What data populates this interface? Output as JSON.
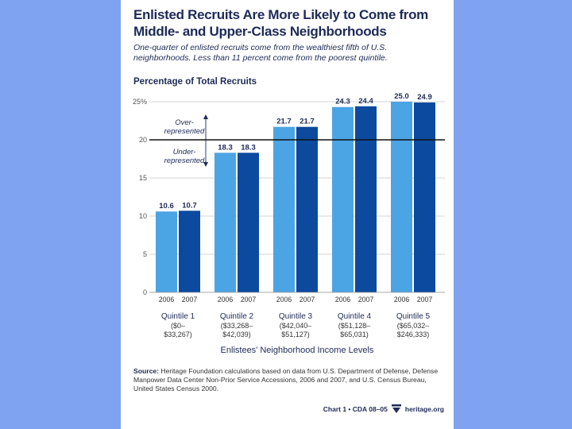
{
  "title_line1": "Enlisted Recruits Are More Likely to Come from",
  "title_line2": "Middle- and Upper-Class Neighborhoods",
  "subtitle_line1": "One-quarter of enlisted recruits come from the wealthiest fifth of U.S.",
  "subtitle_line2": "neighborhoods. Less than 11 percent come from the poorest quintile.",
  "annotations": {
    "over_line1": "Over-",
    "over_line2": "represented",
    "under_line1": "Under-",
    "under_line2": "represented"
  },
  "source_label": "Source:",
  "source_text": "Heritage Foundation calculations based on data from U.S. Department of Defense, Defense Manpower Data Center Non-Prior Service Accessions, 2006 and 2007, and U.S. Census Bureau, United States Census 2000.",
  "footer_chart": "Chart 1 • CDA 08–05",
  "footer_site": "heritage.org",
  "colors": {
    "background": "#7fa3f0",
    "bar_2006": "#4ba4e4",
    "bar_2007": "#0b4a9e",
    "text": "#1e2a57"
  },
  "chart_data": {
    "type": "bar",
    "title": "Enlisted Recruits Are More Likely to Come from Middle- and Upper-Class Neighborhoods",
    "ylabel": "Percentage of Total Recruits",
    "xlabel": "Enlistees' Neighborhood Income Levels",
    "ylim": [
      0,
      25
    ],
    "yticks": [
      "0",
      "5",
      "10",
      "15",
      "20",
      "25%"
    ],
    "reference_line": 20,
    "grid": true,
    "categories": [
      {
        "name": "Quintile 1",
        "range1": "($0–",
        "range2": "$33,267)"
      },
      {
        "name": "Quintile 2",
        "range1": "($33,268–",
        "range2": "$42,039)"
      },
      {
        "name": "Quintile 3",
        "range1": "($42,040–",
        "range2": "$51,127)"
      },
      {
        "name": "Quintile 4",
        "range1": "($51,128–",
        "range2": "$65,031)"
      },
      {
        "name": "Quintile 5",
        "range1": "($65,032–",
        "range2": "$246,333)"
      }
    ],
    "series": [
      {
        "name": "2006",
        "values": [
          10.6,
          18.3,
          21.7,
          24.3,
          25.0
        ]
      },
      {
        "name": "2007",
        "values": [
          10.7,
          18.3,
          21.7,
          24.4,
          24.9
        ]
      }
    ],
    "value_labels": {
      "2006": [
        "10.6",
        "18.3",
        "21.7",
        "24.3",
        "25.0"
      ],
      "2007": [
        "10.7",
        "18.3",
        "21.7",
        "24.4",
        "24.9"
      ]
    }
  }
}
